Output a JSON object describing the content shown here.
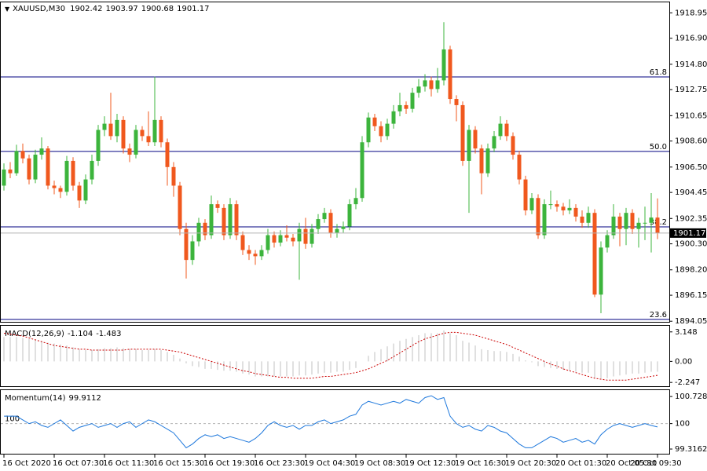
{
  "chart_data": [
    {
      "type": "candlestick",
      "title": "XAUUSD,M30",
      "categories": [
        "16 Oct 2020",
        null,
        null,
        null,
        null,
        null,
        null,
        null,
        "16 Oct 07:30",
        null,
        null,
        null,
        null,
        null,
        null,
        null,
        "16 Oct 11:30",
        null,
        null,
        null,
        null,
        null,
        null,
        null,
        "16 Oct 15:30",
        null,
        null,
        null,
        null,
        null,
        null,
        null,
        "16 Oct 19:30",
        null,
        null,
        null,
        null,
        null,
        null,
        null,
        "16 Oct 23:30",
        null,
        null,
        null,
        null,
        null,
        null,
        null,
        "19 Oct 04:30",
        null,
        null,
        null,
        null,
        null,
        null,
        null,
        "19 Oct 08:30",
        null,
        null,
        null,
        null,
        null,
        null,
        null,
        "19 Oct 12:30",
        null,
        null,
        null,
        null,
        null,
        null,
        null,
        "19 Oct 16:30",
        null,
        null,
        null,
        null,
        null,
        null,
        null,
        "19 Oct 20:30",
        null,
        null,
        null,
        null,
        null,
        null,
        null,
        "20 Oct 01:30",
        null,
        null,
        null,
        null,
        null,
        null,
        null,
        "20 Oct 05:30",
        null,
        null,
        null,
        null,
        null,
        null,
        null,
        "20 Oct 09:30"
      ],
      "candles": [
        [
          1905.0,
          1906.8,
          1904.6,
          1906.3
        ],
        [
          1906.3,
          1906.9,
          1905.6,
          1906.0
        ],
        [
          1906.0,
          1908.3,
          1905.8,
          1907.8
        ],
        [
          1907.8,
          1908.4,
          1906.8,
          1907.2
        ],
        [
          1907.2,
          1907.5,
          1905.1,
          1905.5
        ],
        [
          1905.5,
          1907.9,
          1905.2,
          1907.5
        ],
        [
          1907.5,
          1908.9,
          1907.1,
          1908.0
        ],
        [
          1908.0,
          1908.2,
          1904.7,
          1905.0
        ],
        [
          1905.0,
          1905.4,
          1904.3,
          1904.8
        ],
        [
          1904.8,
          1905.0,
          1904.0,
          1904.5
        ],
        [
          1904.5,
          1907.4,
          1904.2,
          1907.0
        ],
        [
          1907.0,
          1907.3,
          1904.6,
          1905.0
        ],
        [
          1905.0,
          1905.3,
          1903.2,
          1903.8
        ],
        [
          1903.8,
          1905.9,
          1903.5,
          1905.5
        ],
        [
          1905.5,
          1907.5,
          1905.1,
          1907.0
        ],
        [
          1907.0,
          1909.9,
          1906.6,
          1909.5
        ],
        [
          1909.5,
          1910.6,
          1909.0,
          1910.0
        ],
        [
          1910.0,
          1912.5,
          1908.7,
          1909.0
        ],
        [
          1909.0,
          1910.8,
          1908.5,
          1910.3
        ],
        [
          1910.3,
          1910.6,
          1907.6,
          1908.0
        ],
        [
          1908.0,
          1908.4,
          1906.9,
          1907.5
        ],
        [
          1907.5,
          1909.9,
          1907.2,
          1909.5
        ],
        [
          1909.5,
          1909.8,
          1908.6,
          1909.0
        ],
        [
          1909.0,
          1911.0,
          1908.2,
          1908.5
        ],
        [
          1908.5,
          1913.8,
          1908.2,
          1910.3
        ],
        [
          1910.3,
          1910.6,
          1908.1,
          1908.5
        ],
        [
          1908.5,
          1908.8,
          1905.0,
          1906.5
        ],
        [
          1906.5,
          1906.9,
          1904.1,
          1905.0
        ],
        [
          1905.0,
          1905.3,
          1901.0,
          1901.5
        ],
        [
          1901.5,
          1902.0,
          1897.5,
          1899.0
        ],
        [
          1899.0,
          1901.0,
          1898.6,
          1900.5
        ],
        [
          1900.5,
          1902.4,
          1900.1,
          1902.0
        ],
        [
          1902.0,
          1902.3,
          1900.6,
          1901.0
        ],
        [
          1901.0,
          1904.2,
          1900.7,
          1903.5
        ],
        [
          1903.5,
          1903.8,
          1902.8,
          1903.2
        ],
        [
          1903.2,
          1903.5,
          1900.6,
          1901.0
        ],
        [
          1901.0,
          1904.0,
          1900.7,
          1903.5
        ],
        [
          1903.5,
          1903.8,
          1900.6,
          1901.0
        ],
        [
          1901.0,
          1901.3,
          1899.4,
          1899.8
        ],
        [
          1899.8,
          1900.2,
          1899.0,
          1899.5
        ],
        [
          1899.5,
          1899.8,
          1898.6,
          1899.3
        ],
        [
          1899.3,
          1900.2,
          1899.0,
          1899.8
        ],
        [
          1899.8,
          1901.5,
          1899.5,
          1901.0
        ],
        [
          1901.0,
          1901.3,
          1900.0,
          1900.4
        ],
        [
          1900.4,
          1901.4,
          1900.1,
          1901.0
        ],
        [
          1901.0,
          1901.8,
          1900.5,
          1900.8
        ],
        [
          1900.8,
          1901.1,
          1900.1,
          1900.5
        ],
        [
          1900.5,
          1902.0,
          1897.4,
          1901.5
        ],
        [
          1901.5,
          1902.4,
          1899.9,
          1900.3
        ],
        [
          1900.3,
          1901.9,
          1900.0,
          1901.5
        ],
        [
          1901.5,
          1902.7,
          1901.1,
          1902.3
        ],
        [
          1902.3,
          1903.2,
          1902.0,
          1902.8
        ],
        [
          1902.8,
          1903.1,
          1900.8,
          1901.2
        ],
        [
          1901.2,
          1901.9,
          1900.8,
          1901.5
        ],
        [
          1901.5,
          1902.1,
          1901.2,
          1901.7
        ],
        [
          1901.7,
          1903.9,
          1901.4,
          1903.5
        ],
        [
          1903.5,
          1904.8,
          1903.1,
          1904.0
        ],
        [
          1904.0,
          1909.0,
          1903.7,
          1908.5
        ],
        [
          1908.5,
          1910.9,
          1908.1,
          1910.5
        ],
        [
          1910.5,
          1910.8,
          1909.4,
          1909.8
        ],
        [
          1909.8,
          1910.2,
          1908.5,
          1909.0
        ],
        [
          1909.0,
          1910.4,
          1908.7,
          1910.0
        ],
        [
          1910.0,
          1911.5,
          1909.6,
          1911.0
        ],
        [
          1911.0,
          1912.5,
          1910.6,
          1911.5
        ],
        [
          1911.5,
          1911.8,
          1910.8,
          1911.2
        ],
        [
          1911.2,
          1912.9,
          1910.9,
          1912.5
        ],
        [
          1912.5,
          1913.6,
          1912.1,
          1913.0
        ],
        [
          1913.0,
          1914.0,
          1912.6,
          1913.5
        ],
        [
          1913.5,
          1913.8,
          1912.2,
          1912.8
        ],
        [
          1912.8,
          1914.5,
          1912.5,
          1913.5
        ],
        [
          1913.5,
          1918.2,
          1913.1,
          1916.0
        ],
        [
          1916.0,
          1916.3,
          1911.6,
          1912.0
        ],
        [
          1912.0,
          1912.3,
          1910.2,
          1911.5
        ],
        [
          1911.5,
          1911.8,
          1906.6,
          1907.0
        ],
        [
          1907.0,
          1909.9,
          1902.8,
          1909.5
        ],
        [
          1909.5,
          1909.8,
          1907.6,
          1908.0
        ],
        [
          1908.0,
          1908.3,
          1904.3,
          1906.0
        ],
        [
          1906.0,
          1908.4,
          1905.7,
          1908.0
        ],
        [
          1908.0,
          1909.4,
          1907.7,
          1909.0
        ],
        [
          1909.0,
          1910.6,
          1908.7,
          1910.0
        ],
        [
          1910.0,
          1910.3,
          1908.6,
          1909.0
        ],
        [
          1909.0,
          1909.3,
          1907.1,
          1907.5
        ],
        [
          1907.5,
          1907.8,
          1905.1,
          1905.5
        ],
        [
          1905.5,
          1905.8,
          1902.6,
          1903.0
        ],
        [
          1903.0,
          1904.4,
          1902.7,
          1904.0
        ],
        [
          1904.0,
          1904.3,
          1900.7,
          1901.0
        ],
        [
          1901.0,
          1903.9,
          1900.7,
          1903.5
        ],
        [
          1903.5,
          1904.6,
          1903.1,
          1903.5
        ],
        [
          1903.5,
          1903.8,
          1902.9,
          1903.3
        ],
        [
          1903.3,
          1903.6,
          1902.6,
          1903.0
        ],
        [
          1903.0,
          1903.9,
          1902.7,
          1903.2
        ],
        [
          1903.2,
          1903.5,
          1902.1,
          1902.5
        ],
        [
          1902.5,
          1903.0,
          1901.6,
          1902.0
        ],
        [
          1902.0,
          1903.3,
          1901.6,
          1902.8
        ],
        [
          1902.8,
          1903.1,
          1896.0,
          1896.2
        ],
        [
          1896.2,
          1900.5,
          1894.7,
          1900.0
        ],
        [
          1900.0,
          1901.4,
          1899.6,
          1901.0
        ],
        [
          1901.0,
          1903.5,
          1900.7,
          1902.5
        ],
        [
          1902.5,
          1902.8,
          1900.1,
          1901.5
        ],
        [
          1901.5,
          1903.2,
          1900.2,
          1902.8
        ],
        [
          1902.8,
          1903.1,
          1901.1,
          1901.5
        ],
        [
          1901.5,
          1902.4,
          1900.0,
          1902.0
        ],
        [
          1902.0,
          1903.3,
          1900.6,
          1902.0
        ],
        [
          1902.0,
          1904.4,
          1899.6,
          1902.42
        ],
        [
          1902.42,
          1903.97,
          1900.68,
          1901.17
        ]
      ],
      "up_color": "#3cb43c",
      "down_color": "#f0581e",
      "ylim": [
        1894.0,
        1919.8
      ],
      "yticks": [
        1918.95,
        {
          "value": 1916.9,
          "label": "1916.90"
        },
        {
          "value": 1914.8,
          "label": "1914.80"
        },
        1912.75,
        1910.65,
        {
          "value": 1908.6,
          "label": "1908.60"
        },
        {
          "value": 1906.5,
          "label": "1906.50"
        },
        1904.45,
        1902.35,
        {
          "value": 1900.3,
          "label": "1900.30"
        },
        {
          "value": 1898.2,
          "label": "1898.20"
        },
        1896.15,
        1894.05
      ],
      "fib_levels": [
        {
          "label": "61.8",
          "value": 1913.78
        },
        {
          "label": "50.0",
          "value": 1907.76
        },
        {
          "label": "38.2",
          "value": 1901.67
        },
        {
          "label": "23.6",
          "value": 1894.2
        }
      ],
      "fib_color": "#000080"
    },
    {
      "type": "macd",
      "title": "MACD(12,26,9)",
      "series": [
        {
          "color": "#c0c0c0",
          "values": [
            2.6,
            2.6,
            2.6,
            2.5,
            2.4,
            2.3,
            2.2,
            2.0,
            1.9,
            1.8,
            1.7,
            1.5,
            1.3,
            1.2,
            1.2,
            1.3,
            1.4,
            1.4,
            1.5,
            1.4,
            1.3,
            1.3,
            1.2,
            1.2,
            1.3,
            1.2,
            1.0,
            0.7,
            0.3,
            -0.2,
            -0.5,
            -0.6,
            -0.8,
            -0.8,
            -0.9,
            -1.0,
            -1.0,
            -1.1,
            -1.3,
            -1.4,
            -1.6,
            -1.6,
            -1.6,
            -1.6,
            -1.6,
            -1.6,
            -1.6,
            -1.5,
            -1.5,
            -1.4,
            -1.3,
            -1.2,
            -1.2,
            -1.1,
            -1.1,
            -0.9,
            -0.7,
            0.0,
            0.6,
            1.0,
            1.3,
            1.6,
            1.9,
            2.2,
            2.4,
            2.6,
            2.8,
            3.0,
            3.0,
            3.0,
            3.3,
            3.0,
            2.8,
            2.2,
            2.0,
            1.7,
            1.3,
            1.2,
            1.1,
            1.1,
            1.0,
            0.8,
            0.5,
            0.1,
            -0.1,
            -0.5,
            -0.6,
            -0.7,
            -0.8,
            -0.9,
            -1.0,
            -1.1,
            -1.2,
            -1.2,
            -1.8,
            -1.8,
            -1.8,
            -1.6,
            -1.5,
            -1.4,
            -1.3,
            -1.3,
            -1.2,
            -1.1,
            -1.104
          ]
        },
        {
          "color": "#cc0000",
          "values": [
            3.0,
            2.9,
            2.8,
            2.7,
            2.5,
            2.3,
            2.1,
            1.9,
            1.7,
            1.6,
            1.5,
            1.4,
            1.3,
            1.3,
            1.2,
            1.2,
            1.2,
            1.2,
            1.2,
            1.2,
            1.3,
            1.3,
            1.3,
            1.3,
            1.3,
            1.3,
            1.2,
            1.1,
            1.0,
            0.8,
            0.6,
            0.4,
            0.2,
            0.0,
            -0.2,
            -0.4,
            -0.6,
            -0.8,
            -1.0,
            -1.1,
            -1.3,
            -1.4,
            -1.5,
            -1.6,
            -1.7,
            -1.7,
            -1.8,
            -1.8,
            -1.8,
            -1.8,
            -1.7,
            -1.6,
            -1.6,
            -1.5,
            -1.4,
            -1.3,
            -1.2,
            -1.0,
            -0.8,
            -0.5,
            -0.2,
            0.1,
            0.5,
            0.9,
            1.3,
            1.7,
            2.1,
            2.4,
            2.6,
            2.8,
            3.0,
            3.1,
            3.1,
            3.0,
            2.9,
            2.8,
            2.6,
            2.4,
            2.2,
            2.0,
            1.8,
            1.5,
            1.2,
            0.9,
            0.6,
            0.3,
            0.0,
            -0.3,
            -0.5,
            -0.8,
            -1.0,
            -1.2,
            -1.4,
            -1.6,
            -1.8,
            -1.9,
            -2.0,
            -2.0,
            -2.0,
            -2.0,
            -1.9,
            -1.8,
            -1.7,
            -1.6,
            -1.483
          ]
        }
      ],
      "ylim": [
        -2.65,
        3.8
      ],
      "yticks": [
        3.148,
        {
          "value": 0,
          "label": "0.00"
        },
        -2.247
      ]
    },
    {
      "type": "line",
      "title": "Momentum(14)",
      "series": [
        {
          "color": "#1e78dc",
          "values": [
            100.2,
            100.2,
            100.2,
            100.1,
            100.0,
            100.05,
            99.95,
            99.9,
            100.0,
            100.1,
            99.95,
            99.8,
            99.9,
            99.95,
            100.0,
            99.9,
            99.95,
            100.0,
            99.9,
            100.0,
            100.05,
            99.9,
            100.0,
            100.1,
            100.05,
            99.95,
            99.85,
            99.75,
            99.55,
            99.35,
            99.45,
            99.6,
            99.7,
            99.65,
            99.7,
            99.6,
            99.65,
            99.6,
            99.55,
            99.5,
            99.6,
            99.75,
            99.95,
            100.05,
            99.95,
            99.9,
            99.95,
            99.85,
            99.95,
            99.95,
            100.05,
            100.1,
            100.0,
            100.05,
            100.1,
            100.2,
            100.25,
            100.5,
            100.6,
            100.55,
            100.5,
            100.55,
            100.6,
            100.55,
            100.65,
            100.6,
            100.55,
            100.7,
            100.75,
            100.65,
            100.7,
            100.2,
            100.0,
            99.9,
            99.95,
            99.85,
            99.8,
            99.95,
            99.9,
            99.8,
            99.75,
            99.6,
            99.45,
            99.35,
            99.35,
            99.45,
            99.55,
            99.65,
            99.6,
            99.5,
            99.55,
            99.6,
            99.5,
            99.55,
            99.45,
            99.7,
            99.85,
            99.95,
            100.0,
            99.95,
            99.9,
            99.95,
            100.0,
            99.95,
            99.9112
          ]
        }
      ],
      "level": 100,
      "ylim": [
        99.19,
        100.9
      ],
      "yticks": [
        100.7286,
        100,
        99.3162
      ]
    }
  ]
}
